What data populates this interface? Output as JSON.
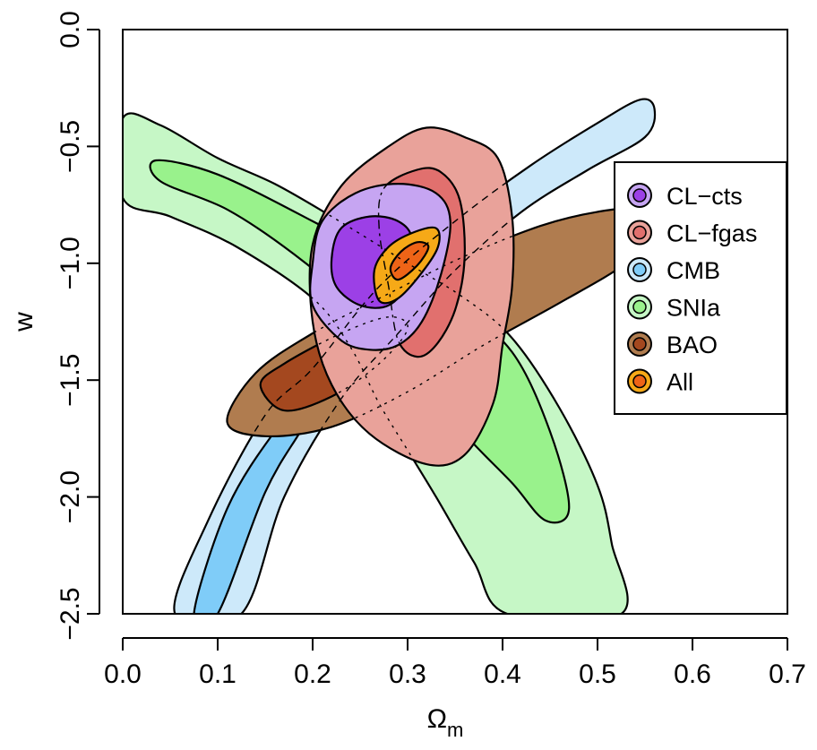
{
  "chart_data": {
    "type": "contour",
    "xlabel": "Ωm",
    "xlabel_main": "Ω",
    "xlabel_sub": "m",
    "ylabel": "w",
    "xlim": [
      0.0,
      0.7
    ],
    "ylim": [
      -2.5,
      0.0
    ],
    "x_ticks": [
      "0.0",
      "0.1",
      "0.2",
      "0.3",
      "0.4",
      "0.5",
      "0.6",
      "0.7"
    ],
    "y_ticks": [
      "0.0",
      "−0.5",
      "−1.0",
      "−1.5",
      "−2.0",
      "−2.5"
    ],
    "x_tick_values": [
      0.0,
      0.1,
      0.2,
      0.3,
      0.4,
      0.5,
      0.6,
      0.7
    ],
    "y_tick_values": [
      0.0,
      -0.5,
      -1.0,
      -1.5,
      -2.0,
      -2.5
    ],
    "grid": false,
    "legend_position": "right",
    "series": [
      {
        "name": "SNIa",
        "color_outer": "#c6f7c6",
        "color_inner": "#99f28c",
        "outer": [
          [
            0.0,
            -0.38
          ],
          [
            0.04,
            -0.41
          ],
          [
            0.1,
            -0.55
          ],
          [
            0.16,
            -0.66
          ],
          [
            0.22,
            -0.8
          ],
          [
            0.3,
            -1.0
          ],
          [
            0.36,
            -1.15
          ],
          [
            0.41,
            -1.32
          ],
          [
            0.46,
            -1.62
          ],
          [
            0.5,
            -1.95
          ],
          [
            0.515,
            -2.2
          ],
          [
            0.525,
            -2.5
          ],
          [
            0.405,
            -2.5
          ],
          [
            0.37,
            -2.28
          ],
          [
            0.33,
            -2.0
          ],
          [
            0.3,
            -1.8
          ],
          [
            0.27,
            -1.6
          ],
          [
            0.24,
            -1.36
          ],
          [
            0.2,
            -1.15
          ],
          [
            0.12,
            -0.93
          ],
          [
            0.05,
            -0.8
          ],
          [
            0.0,
            -0.72
          ]
        ],
        "inner": [
          [
            0.035,
            -0.56
          ],
          [
            0.1,
            -0.62
          ],
          [
            0.2,
            -0.82
          ],
          [
            0.28,
            -1.0
          ],
          [
            0.35,
            -1.17
          ],
          [
            0.41,
            -1.38
          ],
          [
            0.45,
            -1.72
          ],
          [
            0.47,
            -2.05
          ],
          [
            0.445,
            -2.1
          ],
          [
            0.41,
            -1.94
          ],
          [
            0.36,
            -1.73
          ],
          [
            0.31,
            -1.47
          ],
          [
            0.25,
            -1.2
          ],
          [
            0.18,
            -0.96
          ],
          [
            0.11,
            -0.77
          ],
          [
            0.04,
            -0.65
          ]
        ]
      },
      {
        "name": "CMB",
        "color_outer": "#cde9fa",
        "color_inner": "#7fccf8",
        "outer": [
          [
            0.055,
            -2.5
          ],
          [
            0.09,
            -2.1
          ],
          [
            0.15,
            -1.65
          ],
          [
            0.2,
            -1.45
          ],
          [
            0.27,
            -1.1
          ],
          [
            0.35,
            -0.82
          ],
          [
            0.43,
            -0.58
          ],
          [
            0.5,
            -0.4
          ],
          [
            0.545,
            -0.3
          ],
          [
            0.56,
            -0.34
          ],
          [
            0.55,
            -0.46
          ],
          [
            0.49,
            -0.6
          ],
          [
            0.42,
            -0.78
          ],
          [
            0.35,
            -1.03
          ],
          [
            0.29,
            -1.3
          ],
          [
            0.23,
            -1.58
          ],
          [
            0.17,
            -2.0
          ],
          [
            0.125,
            -2.5
          ]
        ],
        "inner": [
          [
            0.075,
            -2.5
          ],
          [
            0.11,
            -2.05
          ],
          [
            0.16,
            -1.72
          ],
          [
            0.2,
            -1.55
          ],
          [
            0.22,
            -1.48
          ],
          [
            0.19,
            -1.7
          ],
          [
            0.15,
            -1.98
          ],
          [
            0.1,
            -2.5
          ]
        ]
      },
      {
        "name": "BAO",
        "color_outer": "#b07c4f",
        "color_inner": "#a4481f",
        "outer": [
          [
            0.11,
            -1.68
          ],
          [
            0.14,
            -1.47
          ],
          [
            0.2,
            -1.3
          ],
          [
            0.28,
            -1.13
          ],
          [
            0.36,
            -0.97
          ],
          [
            0.44,
            -0.84
          ],
          [
            0.5,
            -0.78
          ],
          [
            0.545,
            -0.77
          ],
          [
            0.56,
            -0.86
          ],
          [
            0.53,
            -1.0
          ],
          [
            0.46,
            -1.17
          ],
          [
            0.38,
            -1.35
          ],
          [
            0.3,
            -1.55
          ],
          [
            0.22,
            -1.7
          ],
          [
            0.15,
            -1.74
          ]
        ],
        "inner": [
          [
            0.145,
            -1.52
          ],
          [
            0.17,
            -1.43
          ],
          [
            0.23,
            -1.3
          ],
          [
            0.28,
            -1.23
          ],
          [
            0.3,
            -1.28
          ],
          [
            0.27,
            -1.43
          ],
          [
            0.22,
            -1.57
          ],
          [
            0.17,
            -1.63
          ]
        ]
      },
      {
        "name": "CL-fgas",
        "color_outer": "#e9a29a",
        "color_inner": "#e1706e",
        "outer": [
          [
            0.2,
            -0.92
          ],
          [
            0.23,
            -0.67
          ],
          [
            0.28,
            -0.5
          ],
          [
            0.32,
            -0.42
          ],
          [
            0.36,
            -0.46
          ],
          [
            0.395,
            -0.55
          ],
          [
            0.41,
            -0.8
          ],
          [
            0.41,
            -1.1
          ],
          [
            0.4,
            -1.35
          ],
          [
            0.39,
            -1.6
          ],
          [
            0.36,
            -1.82
          ],
          [
            0.32,
            -1.86
          ],
          [
            0.26,
            -1.73
          ],
          [
            0.22,
            -1.52
          ],
          [
            0.2,
            -1.25
          ]
        ],
        "inner": [
          [
            0.275,
            -0.68
          ],
          [
            0.31,
            -0.6
          ],
          [
            0.335,
            -0.61
          ],
          [
            0.355,
            -0.73
          ],
          [
            0.36,
            -0.98
          ],
          [
            0.35,
            -1.2
          ],
          [
            0.33,
            -1.35
          ],
          [
            0.31,
            -1.4
          ],
          [
            0.29,
            -1.33
          ],
          [
            0.28,
            -1.1
          ],
          [
            0.27,
            -0.85
          ]
        ]
      },
      {
        "name": "CL-cts",
        "color_outer": "#c6a5f2",
        "color_inner": "#9c40e6",
        "outer": [
          [
            0.2,
            -1.0
          ],
          [
            0.21,
            -0.82
          ],
          [
            0.245,
            -0.7
          ],
          [
            0.29,
            -0.66
          ],
          [
            0.33,
            -0.7
          ],
          [
            0.345,
            -0.82
          ],
          [
            0.335,
            -1.05
          ],
          [
            0.315,
            -1.25
          ],
          [
            0.29,
            -1.35
          ],
          [
            0.26,
            -1.37
          ],
          [
            0.23,
            -1.33
          ],
          [
            0.2,
            -1.18
          ]
        ],
        "inner": [
          [
            0.22,
            -0.98
          ],
          [
            0.23,
            -0.85
          ],
          [
            0.26,
            -0.8
          ],
          [
            0.29,
            -0.82
          ],
          [
            0.305,
            -0.9
          ],
          [
            0.3,
            -1.08
          ],
          [
            0.28,
            -1.18
          ],
          [
            0.25,
            -1.18
          ],
          [
            0.225,
            -1.1
          ]
        ]
      },
      {
        "name": "All",
        "color_outer": "#f6a917",
        "color_inner": "#ee6417",
        "outer": [
          [
            0.265,
            -1.03
          ],
          [
            0.28,
            -0.93
          ],
          [
            0.305,
            -0.87
          ],
          [
            0.33,
            -0.85
          ],
          [
            0.332,
            -0.93
          ],
          [
            0.315,
            -1.04
          ],
          [
            0.29,
            -1.15
          ],
          [
            0.27,
            -1.16
          ]
        ],
        "inner": [
          [
            0.282,
            -1.02
          ],
          [
            0.293,
            -0.95
          ],
          [
            0.31,
            -0.91
          ],
          [
            0.322,
            -0.93
          ],
          [
            0.31,
            -1.01
          ],
          [
            0.29,
            -1.07
          ]
        ]
      }
    ],
    "legend": [
      "CL−cts",
      "CL−fgas",
      "CMB",
      "SNIa",
      "BAO",
      "All"
    ]
  },
  "colors": {
    "background": "#ffffff",
    "axis": "#000000",
    "outline": "#000000"
  }
}
